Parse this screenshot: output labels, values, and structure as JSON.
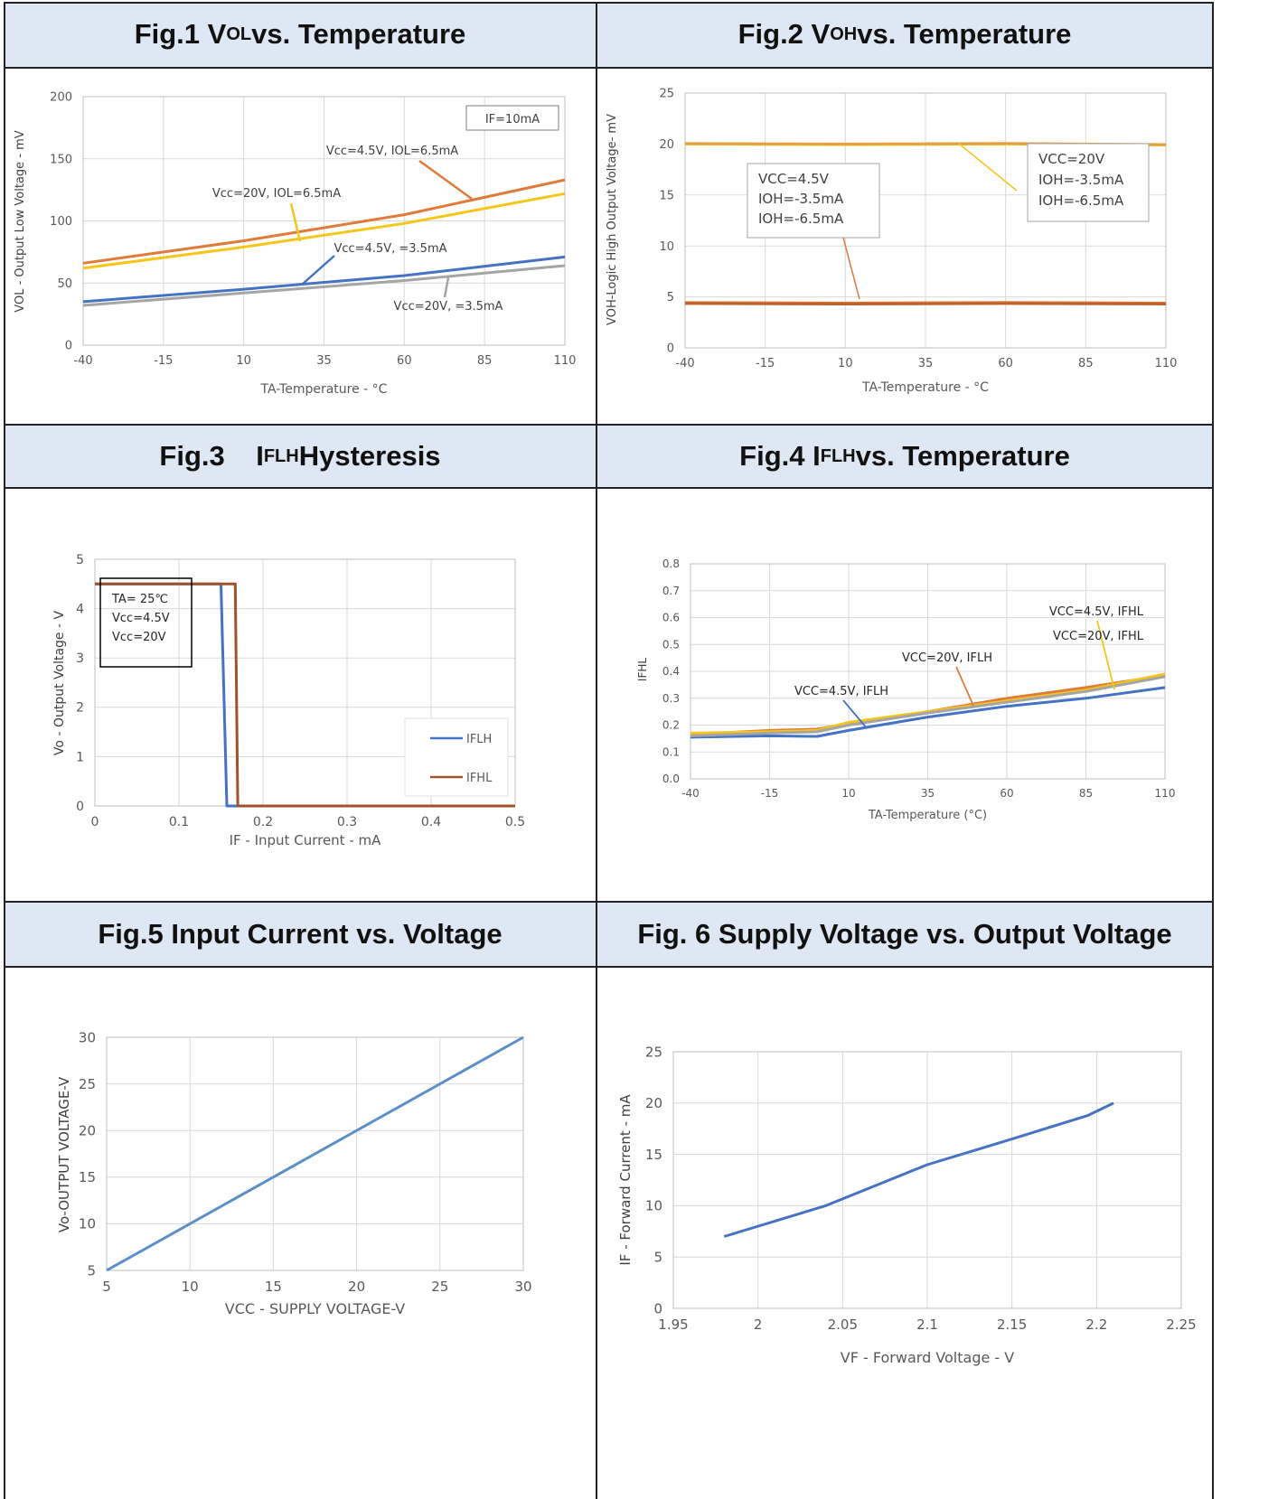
{
  "headers": {
    "fig1": {
      "pre": "Fig.1 V",
      "sub": "OL",
      "post": " vs. Temperature"
    },
    "fig2": {
      "pre": "Fig.2 V",
      "sub": "OH",
      "post": " vs. Temperature"
    },
    "fig3": {
      "pre": "Fig.3    I",
      "sub": "FLH",
      "post": " Hysteresis"
    },
    "fig4": {
      "pre": "Fig.4 I",
      "sub": "FLH",
      "post": " vs. Temperature"
    },
    "fig5": {
      "pre": "Fig.5 Input Current vs. Voltage",
      "sub": "",
      "post": ""
    },
    "fig6": {
      "pre": "Fig. 6 Supply Voltage vs. Output Voltage",
      "sub": "",
      "post": ""
    }
  },
  "chart_data": [
    {
      "id": "fig1",
      "type": "line",
      "xlabel": "TA-Temperature - °C",
      "ylabel": "VOL - Output Low Voltage - mV",
      "xlim": [
        -40,
        110
      ],
      "ylim": [
        0,
        200
      ],
      "xticks": [
        "-40",
        "-15",
        "10",
        "35",
        "60",
        "85",
        "110"
      ],
      "yticks": [
        "0",
        "50",
        "100",
        "150",
        "200"
      ],
      "box_label": "IF=10mA",
      "series": [
        {
          "name": "Vcc=4.5V, IOL=6.5mA",
          "color": "#e07b3a",
          "x": [
            -40,
            10,
            60,
            110
          ],
          "y": [
            66,
            84,
            105,
            133
          ]
        },
        {
          "name": "Vcc=20V, IOL=6.5mA",
          "color": "#f5c518",
          "x": [
            -40,
            10,
            60,
            110
          ],
          "y": [
            62,
            79,
            98,
            122
          ]
        },
        {
          "name": "Vcc=4.5V, =3.5mA",
          "color": "#4472c4",
          "x": [
            -40,
            10,
            60,
            110
          ],
          "y": [
            35,
            45,
            56,
            71
          ]
        },
        {
          "name": "Vcc=20V, =3.5mA",
          "color": "#a5a5a5",
          "x": [
            -40,
            10,
            60,
            110
          ],
          "y": [
            32,
            42,
            52,
            64
          ]
        }
      ],
      "grid": true
    },
    {
      "id": "fig2",
      "type": "line",
      "xlabel": "TA-Temperature - °C",
      "ylabel": "VOH-Logic High Output Voltage- mV",
      "xlim": [
        -40,
        110
      ],
      "ylim": [
        0,
        25
      ],
      "xticks": [
        "-40",
        "-15",
        "10",
        "35",
        "60",
        "85",
        "110"
      ],
      "yticks": [
        "0",
        "5",
        "10",
        "15",
        "20",
        "25"
      ],
      "box_left": [
        "VCC=4.5V",
        "IOH=-3.5mA",
        "IOH=-6.5mA"
      ],
      "box_right": [
        "VCC=20V",
        "IOH=-3.5mA",
        "IOH=-6.5mA"
      ],
      "series": [
        {
          "color": "#f5c518",
          "x": [
            -40,
            10,
            60,
            110
          ],
          "y": [
            20.0,
            19.95,
            20.0,
            19.9
          ]
        },
        {
          "color": "#e6a040",
          "x": [
            -40,
            10,
            60,
            110
          ],
          "y": [
            20.05,
            20.0,
            20.05,
            19.95
          ]
        },
        {
          "color": "#e07b3a",
          "x": [
            -40,
            10,
            60,
            110
          ],
          "y": [
            4.45,
            4.4,
            4.45,
            4.4
          ]
        },
        {
          "color": "#c0612b",
          "x": [
            -40,
            10,
            60,
            110
          ],
          "y": [
            4.35,
            4.3,
            4.35,
            4.3
          ]
        }
      ],
      "grid": true
    },
    {
      "id": "fig3",
      "type": "line",
      "xlabel": "IF - Input Current - mA",
      "ylabel": "Vo - Output Voltage - V",
      "xlim": [
        0,
        0.5
      ],
      "ylim": [
        0,
        5
      ],
      "xticks": [
        "0",
        "0.1",
        "0.2",
        "0.3",
        "0.4",
        "0.5"
      ],
      "yticks": [
        "0",
        "1",
        "2",
        "3",
        "4",
        "5"
      ],
      "box_label": [
        "TA= 25℃",
        "Vcc=4.5V",
        "Vcc=20V"
      ],
      "legend": [
        "IFLH",
        "IFHL"
      ],
      "series": [
        {
          "name": "IFLH",
          "color": "#4472c4",
          "x": [
            0,
            0.15,
            0.157,
            0.5
          ],
          "y": [
            4.5,
            4.5,
            0,
            0
          ]
        },
        {
          "name": "IFHL",
          "color": "#a0522d",
          "x": [
            0,
            0.167,
            0.17,
            0.5
          ],
          "y": [
            4.5,
            4.5,
            0,
            0
          ]
        }
      ],
      "grid": true
    },
    {
      "id": "fig4",
      "type": "line",
      "xlabel": "TA-Temperature (°C)",
      "ylabel": "IFHL",
      "xlim": [
        -40,
        110
      ],
      "ylim": [
        0,
        0.8
      ],
      "xticks": [
        "-40",
        "-15",
        "10",
        "35",
        "60",
        "85",
        "110"
      ],
      "yticks": [
        "0.0",
        "0.1",
        "0.2",
        "0.3",
        "0.4",
        "0.5",
        "0.6",
        "0.7",
        "0.8"
      ],
      "annotations": [
        "VCC=4.5V, IFHL",
        "VCC=20V, IFHL",
        "VCC=20V, IFLH",
        "VCC=4.5V, IFLH"
      ],
      "series": [
        {
          "color": "#4472c4",
          "x": [
            -40,
            -15,
            0,
            10,
            35,
            60,
            85,
            110
          ],
          "y": [
            0.155,
            0.16,
            0.158,
            0.18,
            0.23,
            0.27,
            0.3,
            0.34
          ]
        },
        {
          "color": "#e07b3a",
          "x": [
            -40,
            -15,
            0,
            10,
            35,
            60,
            85,
            110
          ],
          "y": [
            0.165,
            0.18,
            0.185,
            0.205,
            0.25,
            0.3,
            0.34,
            0.385
          ]
        },
        {
          "color": "#f5c518",
          "x": [
            -40,
            -15,
            0,
            10,
            35,
            60,
            85,
            110
          ],
          "y": [
            0.17,
            0.175,
            0.18,
            0.21,
            0.25,
            0.29,
            0.33,
            0.39
          ]
        },
        {
          "color": "#a5a5a5",
          "x": [
            -40,
            -15,
            0,
            10,
            35,
            60,
            85,
            110
          ],
          "y": [
            0.16,
            0.17,
            0.175,
            0.2,
            0.245,
            0.285,
            0.325,
            0.38
          ]
        }
      ],
      "grid": true
    },
    {
      "id": "fig5",
      "type": "line",
      "xlabel": "VCC - SUPPLY VOLTAGE-V",
      "ylabel": "Vo-OUTPUT VOLTAGE-V",
      "xlim": [
        5,
        30
      ],
      "ylim": [
        5,
        30
      ],
      "xticks": [
        "5",
        "10",
        "15",
        "20",
        "25",
        "30"
      ],
      "yticks": [
        "5",
        "10",
        "15",
        "20",
        "25",
        "30"
      ],
      "series": [
        {
          "color": "#5b8fc7",
          "x": [
            5,
            30
          ],
          "y": [
            5,
            30
          ]
        }
      ],
      "grid": true
    },
    {
      "id": "fig6",
      "type": "line",
      "xlabel": "VF - Forward Voltage - V",
      "ylabel": "IF - Forward Current - mA",
      "xlim": [
        1.95,
        2.25
      ],
      "ylim": [
        0,
        25
      ],
      "xticks": [
        "1.95",
        "2",
        "2.05",
        "2.1",
        "2.15",
        "2.2",
        "2.25"
      ],
      "yticks": [
        "0",
        "5",
        "10",
        "15",
        "20",
        "25"
      ],
      "series": [
        {
          "color": "#4472c4",
          "x": [
            1.98,
            2.04,
            2.1,
            2.15,
            2.195,
            2.21
          ],
          "y": [
            7,
            10,
            14,
            16.5,
            18.8,
            20
          ]
        }
      ],
      "grid": true
    }
  ]
}
